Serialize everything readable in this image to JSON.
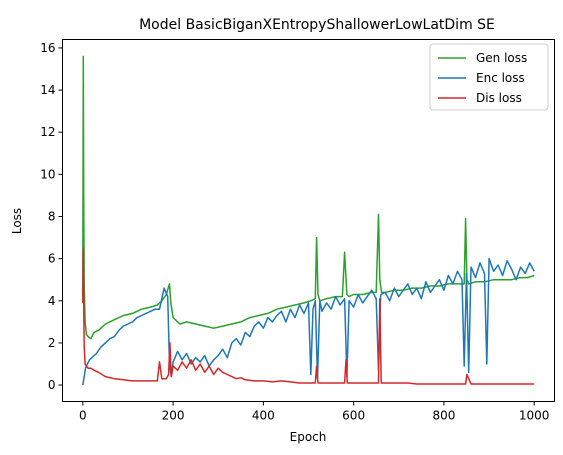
{
  "chart_data": {
    "type": "line",
    "title": "Model BasicBiganXEntropyShallowerLowLatDim SE",
    "xlabel": "Epoch",
    "ylabel": "Loss",
    "xlim": [
      -45,
      1045
    ],
    "ylim": [
      -0.78,
      16.4
    ],
    "xticks": [
      0,
      200,
      400,
      600,
      800,
      1000
    ],
    "yticks": [
      0,
      2,
      4,
      6,
      8,
      10,
      12,
      14,
      16
    ],
    "legend_position": "top-right",
    "grid": false,
    "series": [
      {
        "name": "Gen loss",
        "color": "#2ca02c",
        "x": [
          0,
          1,
          2,
          3,
          5,
          8,
          12,
          18,
          25,
          35,
          50,
          70,
          90,
          110,
          130,
          150,
          165,
          175,
          185,
          192,
          195,
          200,
          215,
          230,
          250,
          270,
          290,
          310,
          330,
          350,
          370,
          390,
          410,
          430,
          450,
          470,
          490,
          505,
          515,
          518,
          521,
          525,
          540,
          560,
          575,
          580,
          585,
          590,
          600,
          620,
          640,
          650,
          655,
          658,
          662,
          670,
          690,
          710,
          730,
          750,
          770,
          790,
          810,
          830,
          845,
          848,
          851,
          855,
          870,
          890,
          910,
          930,
          950,
          970,
          985,
          1000
        ],
        "y": [
          4.2,
          15.6,
          9.0,
          4.8,
          3.0,
          2.4,
          2.3,
          2.2,
          2.5,
          2.6,
          2.9,
          3.1,
          3.3,
          3.4,
          3.6,
          3.7,
          3.8,
          4.0,
          4.3,
          4.8,
          3.9,
          3.2,
          2.9,
          3.0,
          2.9,
          2.8,
          2.7,
          2.8,
          2.9,
          3.0,
          3.2,
          3.3,
          3.4,
          3.6,
          3.7,
          3.8,
          3.9,
          4.0,
          4.1,
          7.0,
          4.3,
          4.0,
          4.1,
          4.2,
          4.2,
          6.3,
          4.3,
          4.2,
          4.3,
          4.3,
          4.4,
          4.4,
          8.1,
          5.0,
          4.4,
          4.4,
          4.5,
          4.5,
          4.6,
          4.6,
          4.7,
          4.7,
          4.8,
          4.8,
          4.8,
          7.9,
          5.0,
          4.8,
          4.9,
          4.9,
          5.0,
          5.0,
          5.0,
          5.1,
          5.1,
          5.2
        ]
      },
      {
        "name": "Enc loss",
        "color": "#1f77b4",
        "x": [
          0,
          3,
          6,
          10,
          15,
          20,
          30,
          40,
          50,
          60,
          70,
          80,
          90,
          100,
          110,
          120,
          130,
          140,
          150,
          160,
          170,
          180,
          188,
          192,
          196,
          200,
          210,
          220,
          230,
          240,
          250,
          260,
          270,
          280,
          290,
          300,
          310,
          320,
          330,
          340,
          350,
          360,
          370,
          380,
          390,
          400,
          410,
          420,
          430,
          440,
          450,
          460,
          470,
          480,
          490,
          500,
          505,
          510,
          515,
          520,
          525,
          530,
          540,
          550,
          560,
          570,
          580,
          585,
          590,
          600,
          610,
          620,
          630,
          640,
          650,
          655,
          660,
          670,
          680,
          690,
          700,
          710,
          720,
          730,
          740,
          750,
          760,
          770,
          780,
          790,
          800,
          810,
          820,
          830,
          840,
          845,
          850,
          855,
          860,
          870,
          880,
          890,
          895,
          900,
          910,
          920,
          930,
          940,
          950,
          960,
          970,
          980,
          990,
          1000
        ],
        "y": [
          0.0,
          0.4,
          0.8,
          1.0,
          1.2,
          1.3,
          1.5,
          1.8,
          2.0,
          2.2,
          2.3,
          2.6,
          2.8,
          2.9,
          3.0,
          3.2,
          3.3,
          3.4,
          3.5,
          3.6,
          3.6,
          4.6,
          4.2,
          1.0,
          0.4,
          1.1,
          1.6,
          1.2,
          1.5,
          1.0,
          1.3,
          1.1,
          1.4,
          0.9,
          1.2,
          1.4,
          1.7,
          1.3,
          2.0,
          2.2,
          1.9,
          2.5,
          2.3,
          2.8,
          3.0,
          2.7,
          3.2,
          3.0,
          3.3,
          3.5,
          3.0,
          3.6,
          3.2,
          3.8,
          3.4,
          3.9,
          0.5,
          3.6,
          4.0,
          0.3,
          4.0,
          3.5,
          3.9,
          3.6,
          4.2,
          3.8,
          4.1,
          0.4,
          4.0,
          3.7,
          4.3,
          3.9,
          4.2,
          4.5,
          4.1,
          0.7,
          4.3,
          4.4,
          4.0,
          4.6,
          4.2,
          4.5,
          4.8,
          4.3,
          4.6,
          4.1,
          4.9,
          4.4,
          4.7,
          5.0,
          4.5,
          5.2,
          4.8,
          5.4,
          5.0,
          0.9,
          5.3,
          0.6,
          5.6,
          5.1,
          5.8,
          5.3,
          1.0,
          6.0,
          5.4,
          5.7,
          5.2,
          5.9,
          5.5,
          5.0,
          5.6,
          5.3,
          5.8,
          5.4
        ]
      },
      {
        "name": "Dis loss",
        "color": "#d62728",
        "x": [
          0,
          1,
          2,
          3,
          5,
          8,
          12,
          18,
          25,
          35,
          50,
          70,
          90,
          110,
          130,
          150,
          165,
          170,
          175,
          185,
          190,
          193,
          196,
          200,
          210,
          220,
          230,
          240,
          250,
          260,
          270,
          280,
          290,
          300,
          310,
          320,
          330,
          340,
          350,
          360,
          380,
          400,
          420,
          440,
          460,
          480,
          500,
          515,
          518,
          521,
          540,
          560,
          580,
          583,
          586,
          600,
          620,
          640,
          655,
          658,
          661,
          680,
          700,
          720,
          740,
          760,
          780,
          800,
          820,
          840,
          848,
          851,
          860,
          880,
          900,
          920,
          940,
          960,
          980,
          1000
        ],
        "y": [
          3.9,
          6.5,
          4.0,
          1.8,
          1.0,
          0.9,
          0.8,
          0.8,
          0.7,
          0.6,
          0.4,
          0.3,
          0.25,
          0.2,
          0.2,
          0.2,
          0.2,
          1.1,
          0.3,
          0.3,
          0.5,
          2.0,
          0.4,
          0.9,
          0.7,
          1.1,
          0.8,
          1.2,
          0.7,
          1.0,
          0.6,
          0.9,
          0.5,
          0.8,
          0.6,
          0.5,
          0.4,
          0.3,
          0.35,
          0.25,
          0.2,
          0.2,
          0.15,
          0.2,
          0.15,
          0.1,
          0.1,
          0.1,
          0.9,
          0.1,
          0.1,
          0.1,
          0.1,
          1.2,
          0.1,
          0.1,
          0.1,
          0.1,
          0.1,
          4.1,
          0.1,
          0.1,
          0.1,
          0.1,
          0.05,
          0.05,
          0.05,
          0.05,
          0.05,
          0.05,
          0.05,
          0.5,
          0.05,
          0.05,
          0.05,
          0.05,
          0.05,
          0.05,
          0.05,
          0.05
        ]
      }
    ]
  }
}
